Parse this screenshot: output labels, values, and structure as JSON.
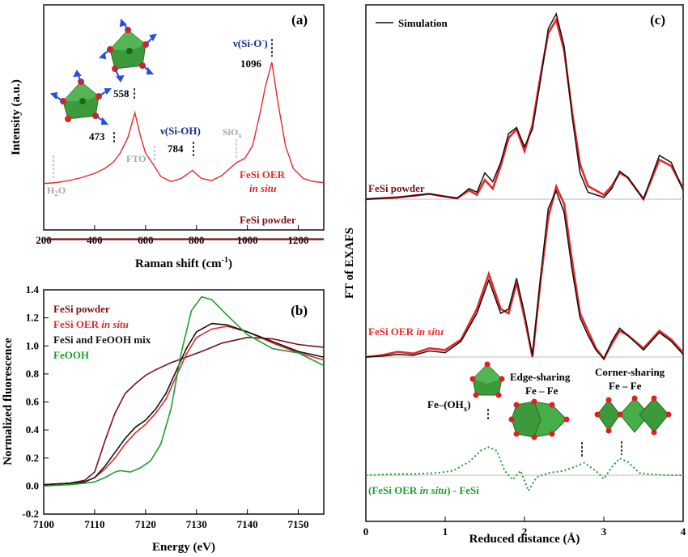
{
  "figure": {
    "colors": {
      "red": "#e8272b",
      "dark_red": "#7a1018",
      "black": "#111111",
      "green": "#1e9e2e",
      "grey_text": "#a6a6a6",
      "navy": "#1a2d86",
      "baseline": "#b8b8b8"
    }
  },
  "chart_data": [
    {
      "type": "line",
      "panel_label": "(a)",
      "xlabel": "Raman shift  (cm",
      "xlabel_sup": "-1",
      "xlabel_end": ")",
      "ylabel": "Intensity (a.u.)",
      "xlim": [
        200,
        1300
      ],
      "xticks": [
        200,
        400,
        600,
        800,
        1000,
        1200
      ],
      "series": [
        {
          "name": "FeSi OER in situ",
          "color": "#e8272b",
          "x": [
            200,
            250,
            300,
            350,
            400,
            440,
            473,
            500,
            530,
            558,
            580,
            600,
            630,
            660,
            700,
            740,
            784,
            820,
            860,
            900,
            940,
            960,
            990,
            1020,
            1050,
            1070,
            1096,
            1120,
            1150,
            1180,
            1220,
            1260,
            1300
          ],
          "y": [
            0.25,
            0.26,
            0.28,
            0.31,
            0.35,
            0.4,
            0.46,
            0.55,
            0.7,
            0.95,
            0.72,
            0.55,
            0.44,
            0.32,
            0.27,
            0.3,
            0.38,
            0.3,
            0.28,
            0.33,
            0.42,
            0.46,
            0.5,
            0.62,
            0.95,
            1.2,
            1.45,
            1.05,
            0.62,
            0.4,
            0.3,
            0.27,
            0.26
          ]
        },
        {
          "name": "FeSi powder",
          "color": "#7a1018",
          "x": [
            200,
            1300
          ],
          "y": [
            -0.3,
            -0.3
          ]
        }
      ],
      "annotations": {
        "p473": "473",
        "p558": "558",
        "p784": "784",
        "p1096": "1096",
        "h2o_main": "H",
        "h2o_sub": "2",
        "h2o_end": "O",
        "fto": "FTO",
        "siox_main": "SiO",
        "siox_sub": "x",
        "vsioh": "ν(Si-OH)",
        "vsio_main": "ν(Si-O",
        "vsio_sup": "-",
        "vsio_end": ")",
        "label_insitu_1": "FeSi OER",
        "label_insitu_2": "in situ",
        "label_powder": "FeSi powder"
      }
    },
    {
      "type": "line",
      "panel_label": "(b)",
      "xlabel": "Energy (eV)",
      "ylabel": "Normalized fluorescence",
      "xlim": [
        7100,
        7155
      ],
      "ylim": [
        -0.2,
        1.4
      ],
      "xticks": [
        7100,
        7110,
        7120,
        7130,
        7140,
        7150
      ],
      "yticks": [
        "-0.2",
        "0.0",
        "0.2",
        "0.4",
        "0.6",
        "0.8",
        "1.0",
        "1.2",
        "1.4"
      ],
      "legend": [
        {
          "text": "FeSi powder",
          "color": "#7a1018",
          "italic_part": ""
        },
        {
          "text": "FeSi OER ",
          "color": "#e8272b",
          "italic_part": "in situ"
        },
        {
          "text": "FeSi and FeOOH mix",
          "color": "#111111",
          "italic_part": ""
        },
        {
          "text": "FeOOH",
          "color": "#1e9e2e",
          "italic_part": ""
        }
      ],
      "series": [
        {
          "name": "FeSi powder",
          "color": "#7a1018",
          "x": [
            7100,
            7105,
            7108,
            7110,
            7112,
            7114,
            7116,
            7118,
            7120,
            7122,
            7125,
            7128,
            7131,
            7135,
            7140,
            7145,
            7150,
            7155
          ],
          "y": [
            0.01,
            0.02,
            0.04,
            0.1,
            0.32,
            0.52,
            0.66,
            0.73,
            0.79,
            0.83,
            0.88,
            0.92,
            0.96,
            1.02,
            1.06,
            1.05,
            1.01,
            0.99
          ]
        },
        {
          "name": "FeSi OER in situ",
          "color": "#e8272b",
          "x": [
            7100,
            7105,
            7108,
            7110,
            7112,
            7114,
            7116,
            7118,
            7120,
            7122,
            7124,
            7126,
            7128,
            7130,
            7133,
            7136,
            7140,
            7145,
            7150,
            7155
          ],
          "y": [
            0.01,
            0.02,
            0.03,
            0.06,
            0.12,
            0.2,
            0.3,
            0.38,
            0.44,
            0.52,
            0.62,
            0.78,
            0.94,
            1.06,
            1.12,
            1.14,
            1.1,
            1.02,
            0.95,
            0.9
          ]
        },
        {
          "name": "FeSi and FeOOH mix",
          "color": "#111111",
          "x": [
            7100,
            7105,
            7108,
            7110,
            7112,
            7114,
            7116,
            7118,
            7120,
            7122,
            7124,
            7126,
            7128,
            7130,
            7133,
            7136,
            7140,
            7145,
            7150,
            7155
          ],
          "y": [
            0.01,
            0.02,
            0.03,
            0.06,
            0.14,
            0.24,
            0.34,
            0.42,
            0.47,
            0.55,
            0.66,
            0.82,
            0.98,
            1.1,
            1.16,
            1.15,
            1.1,
            1.03,
            0.96,
            0.92
          ]
        },
        {
          "name": "FeOOH",
          "color": "#1e9e2e",
          "x": [
            7100,
            7105,
            7108,
            7110,
            7112,
            7114,
            7115,
            7117,
            7119,
            7121,
            7123,
            7125,
            7127,
            7129,
            7131,
            7133,
            7136,
            7140,
            7145,
            7150,
            7155
          ],
          "y": [
            0.0,
            0.01,
            0.02,
            0.03,
            0.06,
            0.1,
            0.11,
            0.1,
            0.13,
            0.18,
            0.3,
            0.55,
            0.95,
            1.25,
            1.35,
            1.33,
            1.22,
            1.08,
            0.98,
            0.95,
            0.86
          ]
        }
      ]
    },
    {
      "type": "line",
      "panel_label": "(c)",
      "xlabel": "Reduced distance (Å)",
      "ylabel": "FT of EXAFS",
      "xlim": [
        0,
        4
      ],
      "xticks": [
        0,
        1,
        2,
        3,
        4
      ],
      "legend": [
        {
          "text": "Simulation",
          "color": "#111111"
        }
      ],
      "series": [
        {
          "name": "FeSi powder",
          "color": "#e8272b",
          "offset": 2.0,
          "x": [
            0,
            0.2,
            0.4,
            0.6,
            0.8,
            1.0,
            1.15,
            1.3,
            1.4,
            1.5,
            1.6,
            1.7,
            1.8,
            1.9,
            2.0,
            2.1,
            2.2,
            2.3,
            2.4,
            2.5,
            2.6,
            2.7,
            2.8,
            3.0,
            3.1,
            3.2,
            3.3,
            3.5,
            3.7,
            3.85,
            4.0
          ],
          "y": [
            0.0,
            0.01,
            0.02,
            0.04,
            0.06,
            0.03,
            0.01,
            0.1,
            0.05,
            0.22,
            0.12,
            0.38,
            0.7,
            0.8,
            0.55,
            0.85,
            1.4,
            1.9,
            2.05,
            1.7,
            1.0,
            0.4,
            0.15,
            0.05,
            0.15,
            0.3,
            0.25,
            0.0,
            0.45,
            0.38,
            0.12
          ]
        },
        {
          "name": "Simulation",
          "color": "#111111",
          "offset": 2.0,
          "x": [
            0,
            0.2,
            0.4,
            0.6,
            0.8,
            1.0,
            1.15,
            1.3,
            1.4,
            1.5,
            1.6,
            1.7,
            1.8,
            1.9,
            2.0,
            2.1,
            2.2,
            2.3,
            2.4,
            2.5,
            2.6,
            2.7,
            2.8,
            3.0,
            3.1,
            3.2,
            3.3,
            3.5,
            3.7,
            3.85,
            4.0
          ],
          "y": [
            0.0,
            0.01,
            0.02,
            0.04,
            0.06,
            0.03,
            0.01,
            0.12,
            0.08,
            0.3,
            0.2,
            0.42,
            0.75,
            0.82,
            0.6,
            0.8,
            1.35,
            1.95,
            2.12,
            1.75,
            0.95,
            0.3,
            0.08,
            0.02,
            0.12,
            0.32,
            0.25,
            0.0,
            0.5,
            0.42,
            0.1
          ]
        },
        {
          "name": "FeSi OER in situ",
          "color": "#e8272b",
          "offset": 0.0,
          "x": [
            0,
            0.2,
            0.4,
            0.6,
            0.8,
            1.0,
            1.2,
            1.4,
            1.55,
            1.7,
            1.8,
            1.9,
            2.0,
            2.1,
            2.2,
            2.3,
            2.4,
            2.5,
            2.6,
            2.7,
            2.8,
            2.9,
            3.0,
            3.1,
            3.2,
            3.3,
            3.5,
            3.7,
            3.85,
            4.0
          ],
          "y": [
            0.0,
            0.02,
            0.06,
            0.04,
            0.1,
            0.08,
            0.2,
            0.55,
            0.95,
            0.55,
            0.5,
            0.85,
            0.45,
            0.0,
            0.85,
            1.6,
            1.95,
            1.75,
            1.1,
            0.5,
            0.3,
            0.1,
            -0.02,
            0.15,
            0.3,
            0.25,
            0.1,
            0.3,
            0.2,
            0.05
          ]
        },
        {
          "name": "Simulation",
          "color": "#111111",
          "offset": 0.0,
          "x": [
            0,
            0.2,
            0.4,
            0.6,
            0.8,
            1.0,
            1.2,
            1.4,
            1.55,
            1.7,
            1.8,
            1.9,
            2.0,
            2.1,
            2.2,
            2.3,
            2.4,
            2.5,
            2.6,
            2.7,
            2.8,
            2.9,
            3.0,
            3.1,
            3.2,
            3.3,
            3.5,
            3.7,
            3.85,
            4.0
          ],
          "y": [
            0.0,
            0.01,
            0.03,
            0.02,
            0.07,
            0.05,
            0.18,
            0.5,
            0.88,
            0.5,
            0.55,
            0.9,
            0.5,
            0.02,
            0.9,
            1.7,
            1.9,
            1.65,
            1.0,
            0.45,
            0.25,
            0.08,
            -0.02,
            0.18,
            0.33,
            0.25,
            0.08,
            0.28,
            0.18,
            0.03
          ]
        },
        {
          "name": "(FeSi OER in situ) - FeSi",
          "color": "#1e9e2e",
          "dashed": true,
          "offset": -1.2,
          "x": [
            0,
            0.3,
            0.6,
            0.9,
            1.1,
            1.3,
            1.45,
            1.55,
            1.65,
            1.75,
            1.85,
            1.95,
            2.05,
            2.15,
            2.3,
            2.5,
            2.65,
            2.75,
            2.9,
            3.0,
            3.1,
            3.2,
            3.3,
            3.45,
            3.6,
            3.8,
            4.0
          ],
          "y": [
            0.0,
            0.02,
            0.03,
            0.05,
            0.1,
            0.3,
            0.55,
            0.63,
            0.55,
            0.1,
            -0.1,
            0.1,
            -0.35,
            -0.05,
            0.05,
            0.1,
            0.2,
            0.28,
            0.1,
            -0.08,
            0.18,
            0.38,
            0.3,
            0.05,
            0.02,
            0.0,
            0.0
          ]
        }
      ],
      "annotations": {
        "label_powder": "FeSi powder",
        "label_insitu_1": "FeSi OER ",
        "label_insitu_2": "in situ",
        "label_diff_1": "(FeSi OER ",
        "label_diff_2": "in situ",
        "label_diff_3": ") - FeSi",
        "edge_1": "Edge-sharing",
        "edge_2": "Fe – Fe",
        "corner_1": "Corner-sharing",
        "corner_2": "Fe – Fe",
        "feoh_main": "Fe–(OH",
        "feoh_sub": "x",
        "feoh_end": ")"
      }
    }
  ]
}
